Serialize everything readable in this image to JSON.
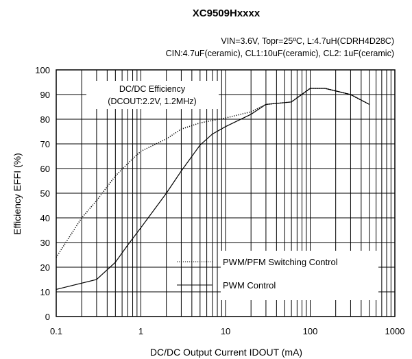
{
  "chart_data": {
    "type": "line",
    "title": "XC9509Hxxxx",
    "subtitle_line1": "VIN=3.6V, Topr=25ºC, L:4.7uH(CDRH4D28C)",
    "subtitle_line2": "CIN:4.7uF(ceramic), CL1:10uF(ceramic), CL2: 1uF(ceramic)",
    "annotation_line1": "DC/DC Efficiency",
    "annotation_line2": "(DCOUT:2.2V, 1.2MHz)",
    "xlabel": "DC/DC Output Current IDOUT (mA)",
    "ylabel": "Efficiency EFFI (%)",
    "xscale": "log",
    "xlim": [
      0.1,
      1000
    ],
    "ylim": [
      0,
      100
    ],
    "xticks": [
      0.1,
      1,
      10,
      100,
      1000
    ],
    "xtick_labels": [
      "0.1",
      "1",
      "10",
      "100",
      "1000"
    ],
    "yticks": [
      0,
      10,
      20,
      30,
      40,
      50,
      60,
      70,
      80,
      90,
      100
    ],
    "ytick_labels": [
      "0",
      "10",
      "20",
      "30",
      "40",
      "50",
      "60",
      "70",
      "80",
      "90",
      "100"
    ],
    "grid": true,
    "legend_position": "bottom-right",
    "series": [
      {
        "name": "PWM/PFM Switching Control",
        "style": "dotted",
        "x": [
          0.1,
          0.2,
          0.3,
          0.5,
          0.8,
          1,
          2,
          3,
          5,
          10,
          20,
          30,
          60,
          100,
          150,
          300,
          500
        ],
        "y": [
          24,
          40,
          47,
          57,
          64,
          67,
          72,
          76,
          78.5,
          80.5,
          83,
          86,
          87,
          92.5,
          92.5,
          90,
          86
        ]
      },
      {
        "name": "PWM Control",
        "style": "solid",
        "x": [
          0.1,
          0.3,
          0.5,
          0.7,
          1,
          2,
          3,
          5,
          7,
          10,
          20,
          30,
          60,
          100,
          150,
          300,
          500
        ],
        "y": [
          11,
          15,
          22,
          29,
          36,
          50,
          59,
          69.5,
          74,
          77,
          82,
          86,
          87,
          92.5,
          92.5,
          90,
          86
        ]
      }
    ]
  }
}
